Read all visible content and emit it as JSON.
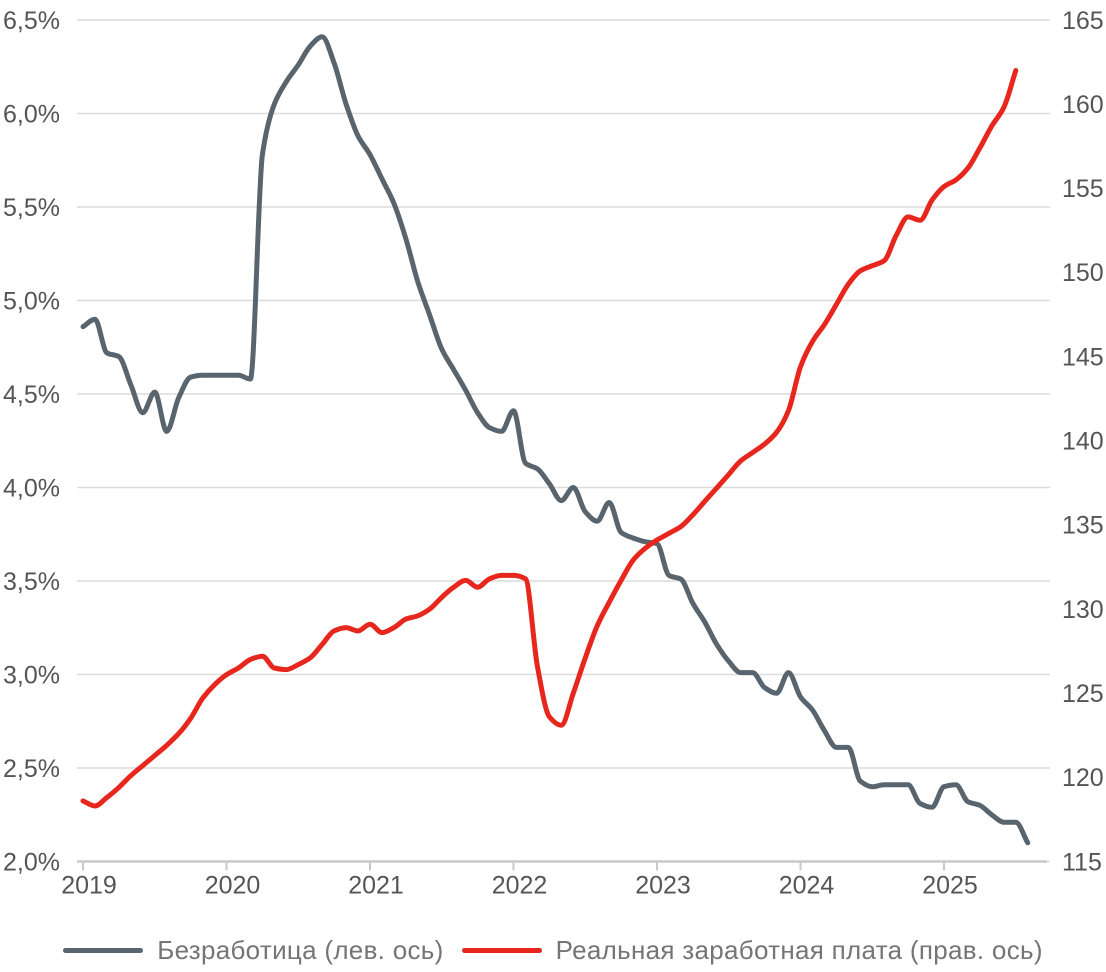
{
  "colors": {
    "background": "#ffffff",
    "grid": "#dcdcdc",
    "axis_line": "#c9c9c9",
    "axis_text": "#555555",
    "legend_text": "#757575",
    "unemployment_line": "#58656f",
    "wage_line": "#e7271d"
  },
  "chart_data": {
    "type": "line",
    "title": "",
    "grid": true,
    "legend_position": "bottom",
    "x_axis": {
      "tick_labels": [
        "2019",
        "2020",
        "2021",
        "2022",
        "2023",
        "2024",
        "2025"
      ],
      "start_year": 2019,
      "points_per_year": 12
    },
    "left_axis": {
      "min": 2.0,
      "max": 6.5,
      "tick_values": [
        6.5,
        6.0,
        5.5,
        5.0,
        4.5,
        4.0,
        3.5,
        3.0,
        2.5,
        2.0
      ],
      "tick_labels": [
        "6,5%",
        "6,0%",
        "5,5%",
        "5,0%",
        "4,5%",
        "4,0%",
        "3,5%",
        "3,0%",
        "2,5%",
        "2,0%"
      ]
    },
    "right_axis": {
      "min": 115,
      "max": 165,
      "tick_values": [
        165,
        160,
        155,
        150,
        145,
        140,
        135,
        130,
        125,
        120,
        115
      ],
      "tick_labels": [
        "165",
        "160",
        "155",
        "150",
        "145",
        "140",
        "135",
        "130",
        "125",
        "120",
        "115"
      ]
    },
    "series": [
      {
        "name": "Безработица (лев. ось)",
        "axis": "left",
        "color": "#58656f",
        "values": [
          4.86,
          4.9,
          4.72,
          4.7,
          4.55,
          4.4,
          4.51,
          4.3,
          4.48,
          4.59,
          4.6,
          4.6,
          4.6,
          4.6,
          4.58,
          5.78,
          6.05,
          6.17,
          6.26,
          6.36,
          6.41,
          6.27,
          6.05,
          5.88,
          5.78,
          5.65,
          5.52,
          5.33,
          5.1,
          4.92,
          4.74,
          4.63,
          4.52,
          4.4,
          4.32,
          4.3,
          4.41,
          4.13,
          4.1,
          4.02,
          3.93,
          4.0,
          3.87,
          3.82,
          3.92,
          3.76,
          3.73,
          3.71,
          3.7,
          3.53,
          3.51,
          3.38,
          3.28,
          3.16,
          3.07,
          3.01,
          3.01,
          2.93,
          2.9,
          3.01,
          2.88,
          2.81,
          2.7,
          2.61,
          2.61,
          2.43,
          2.4,
          2.41,
          2.41,
          2.41,
          2.31,
          2.29,
          2.4,
          2.41,
          2.32,
          2.3,
          2.25,
          2.21,
          2.21,
          2.1
        ]
      },
      {
        "name": "Реальная заработная плата (прав. ось)",
        "axis": "right",
        "color": "#e7271d",
        "values": [
          118.6,
          118.3,
          118.8,
          119.4,
          120.1,
          120.7,
          121.3,
          121.9,
          122.6,
          123.5,
          124.7,
          125.5,
          126.1,
          126.5,
          127.0,
          127.2,
          126.5,
          126.4,
          126.7,
          127.1,
          127.9,
          128.7,
          128.9,
          128.7,
          129.1,
          128.6,
          128.9,
          129.4,
          129.6,
          130.0,
          130.7,
          131.3,
          131.7,
          131.3,
          131.8,
          132.0,
          132.0,
          131.8,
          126.6,
          123.6,
          123.1,
          125.0,
          127.1,
          129.0,
          130.4,
          131.7,
          132.9,
          133.6,
          134.1,
          134.5,
          134.9,
          135.6,
          136.4,
          137.2,
          138.0,
          138.8,
          139.3,
          139.8,
          140.5,
          141.8,
          144.4,
          145.9,
          146.9,
          148.1,
          149.3,
          150.1,
          150.4,
          150.7,
          152.2,
          153.3,
          153.1,
          154.3,
          155.1,
          155.5,
          156.2,
          157.4,
          158.7,
          159.8,
          162.0
        ]
      }
    ]
  },
  "legend": {
    "items": [
      {
        "label": "Безработица (лев. ось)",
        "color": "#58656f"
      },
      {
        "label": "Реальная заработная плата (прав. ось)",
        "color": "#e7271d"
      }
    ]
  }
}
